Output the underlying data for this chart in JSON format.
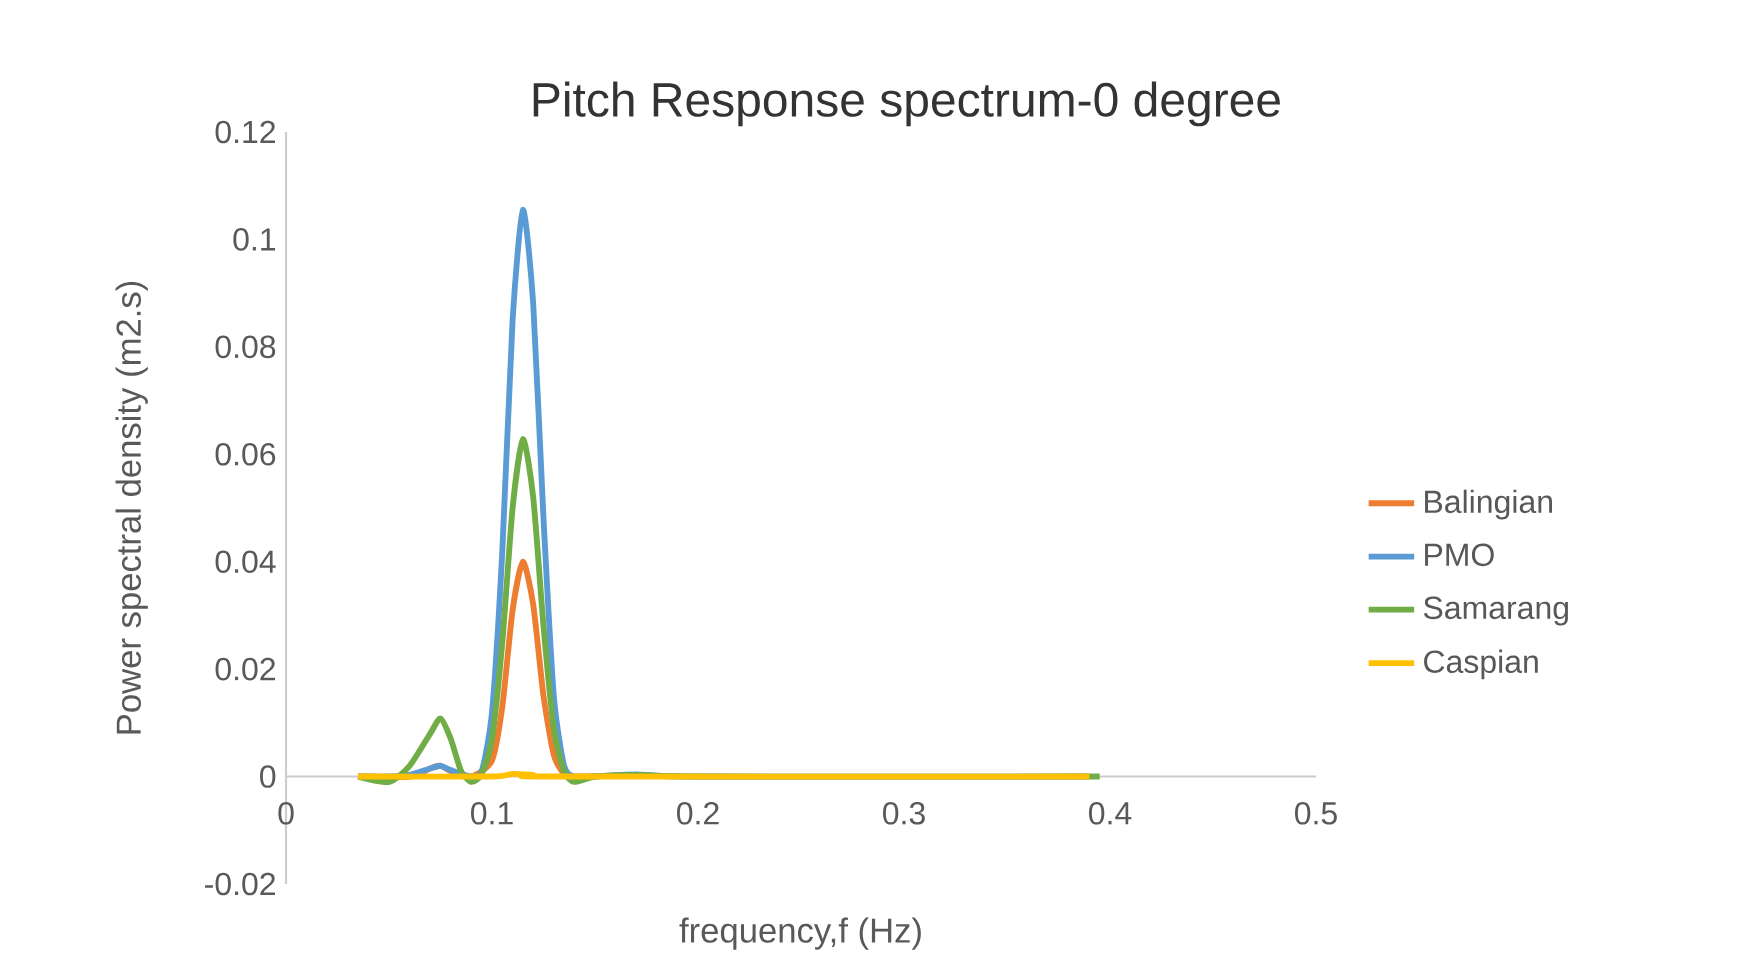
{
  "chart_data": {
    "type": "line",
    "title": "Pitch Response spectrum-0 degree",
    "xlabel": "frequency,f (Hz)",
    "ylabel": "Power spectral density (m2.s)",
    "xlim": [
      0,
      0.5
    ],
    "xticks": [
      0,
      0.1,
      0.2,
      0.3,
      0.4,
      0.5
    ],
    "ylim": [
      -0.02,
      0.12
    ],
    "yticks": [
      -0.02,
      0,
      0.02,
      0.04,
      0.06,
      0.08,
      0.1,
      0.12
    ],
    "legend": "right",
    "grid": false,
    "marker": "none",
    "line_style": "solid",
    "series": [
      {
        "name": "Balingian",
        "color": "#ed7d31",
        "x": [
          0.035,
          0.06,
          0.07,
          0.075,
          0.08,
          0.09,
          0.1,
          0.105,
          0.11,
          0.115,
          0.12,
          0.125,
          0.13,
          0.135,
          0.14,
          0.17
        ],
        "values": [
          0,
          0,
          0.0015,
          0.002,
          0.001,
          0,
          0.003,
          0.013,
          0.031,
          0.04,
          0.032,
          0.015,
          0.004,
          0.0005,
          0,
          0.0003
        ]
      },
      {
        "name": "PMO",
        "color": "#5b9bd5",
        "x": [
          0.035,
          0.05,
          0.06,
          0.07,
          0.075,
          0.08,
          0.09,
          0.095,
          0.1,
          0.105,
          0.11,
          0.115,
          0.12,
          0.125,
          0.13,
          0.135,
          0.14,
          0.15,
          0.17,
          0.2,
          0.39
        ],
        "values": [
          0,
          0,
          0.0003,
          0.0015,
          0.002,
          0.0012,
          0,
          0.001,
          0.012,
          0.042,
          0.085,
          0.1055,
          0.088,
          0.048,
          0.015,
          0.002,
          0,
          0,
          0.0004,
          0,
          0
        ]
      },
      {
        "name": "Samarang",
        "color": "#70ad47",
        "x": [
          0.035,
          0.05,
          0.06,
          0.07,
          0.075,
          0.08,
          0.085,
          0.09,
          0.095,
          0.1,
          0.105,
          0.11,
          0.115,
          0.12,
          0.125,
          0.13,
          0.135,
          0.14,
          0.15,
          0.17,
          0.2,
          0.395
        ],
        "values": [
          0,
          -0.001,
          0.002,
          0.008,
          0.0108,
          0.007,
          0.001,
          -0.001,
          0.0005,
          0.007,
          0.025,
          0.05,
          0.0628,
          0.052,
          0.028,
          0.009,
          0.001,
          -0.001,
          0,
          0.0003,
          0,
          0
        ]
      },
      {
        "name": "Caspian",
        "color": "#ffc000",
        "x": [
          0.035,
          0.1,
          0.11,
          0.12,
          0.13,
          0.39
        ],
        "values": [
          0,
          0,
          0.0005,
          0.0003,
          0,
          0
        ]
      }
    ]
  }
}
